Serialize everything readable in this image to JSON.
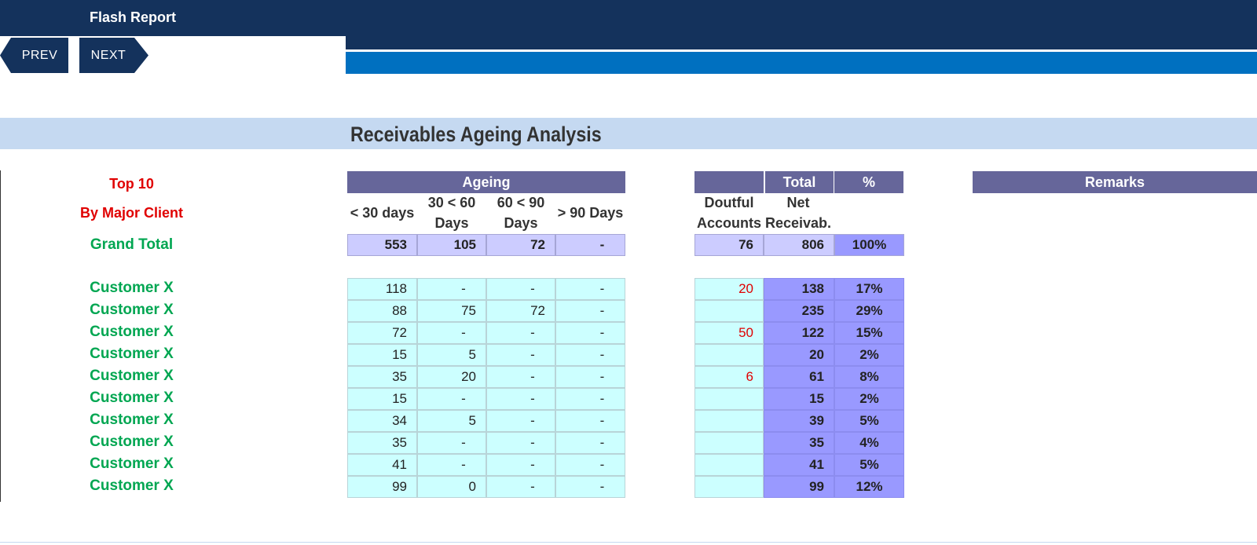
{
  "header": {
    "title": "Flash Report"
  },
  "nav": {
    "prev_label": "PREV",
    "next_label": "NEXT"
  },
  "report": {
    "heading": "Receivables Ageing Analysis"
  },
  "labels": {
    "top10": "Top 10",
    "by_major_client": "By Major Client",
    "grand_total": "Grand Total"
  },
  "table": {
    "ageing_header": "Ageing",
    "total_header": "Total",
    "pct_header": "%",
    "remarks_header": "Remarks",
    "col_lt30": "< 30 days",
    "col_30_60": "30 < 60 Days",
    "col_60_90": "60 < 90 Days",
    "col_gt90": "> 90 Days",
    "col_doubtful": "Doutful Accounts",
    "col_net": "Net Receivab.",
    "grand_total": {
      "lt30": "553",
      "d30_60": "105",
      "d60_90": "72",
      "gt90": "-",
      "doubtful": "76",
      "net": "806",
      "pct": "100%"
    },
    "rows": [
      {
        "name": "Customer X",
        "lt30": "118",
        "d30_60": "-",
        "d60_90": "-",
        "gt90": "-",
        "doubtful": "20",
        "net": "138",
        "pct": "17%"
      },
      {
        "name": "Customer X",
        "lt30": "88",
        "d30_60": "75",
        "d60_90": "72",
        "gt90": "-",
        "doubtful": "",
        "net": "235",
        "pct": "29%"
      },
      {
        "name": "Customer X",
        "lt30": "72",
        "d30_60": "-",
        "d60_90": "-",
        "gt90": "-",
        "doubtful": "50",
        "net": "122",
        "pct": "15%"
      },
      {
        "name": "Customer X",
        "lt30": "15",
        "d30_60": "5",
        "d60_90": "-",
        "gt90": "-",
        "doubtful": "",
        "net": "20",
        "pct": "2%"
      },
      {
        "name": "Customer X",
        "lt30": "35",
        "d30_60": "20",
        "d60_90": "-",
        "gt90": "-",
        "doubtful": "6",
        "net": "61",
        "pct": "8%"
      },
      {
        "name": "Customer X",
        "lt30": "15",
        "d30_60": "-",
        "d60_90": "-",
        "gt90": "-",
        "doubtful": "",
        "net": "15",
        "pct": "2%"
      },
      {
        "name": "Customer X",
        "lt30": "34",
        "d30_60": "5",
        "d60_90": "-",
        "gt90": "-",
        "doubtful": "",
        "net": "39",
        "pct": "5%"
      },
      {
        "name": "Customer X",
        "lt30": "35",
        "d30_60": "-",
        "d60_90": "-",
        "gt90": "-",
        "doubtful": "",
        "net": "35",
        "pct": "4%"
      },
      {
        "name": "Customer X",
        "lt30": "41",
        "d30_60": "-",
        "d60_90": "-",
        "gt90": "-",
        "doubtful": "",
        "net": "41",
        "pct": "5%"
      },
      {
        "name": "Customer X",
        "lt30": "99",
        "d30_60": "0",
        "d60_90": "-",
        "gt90": "-",
        "doubtful": "",
        "net": "99",
        "pct": "12%"
      }
    ]
  }
}
